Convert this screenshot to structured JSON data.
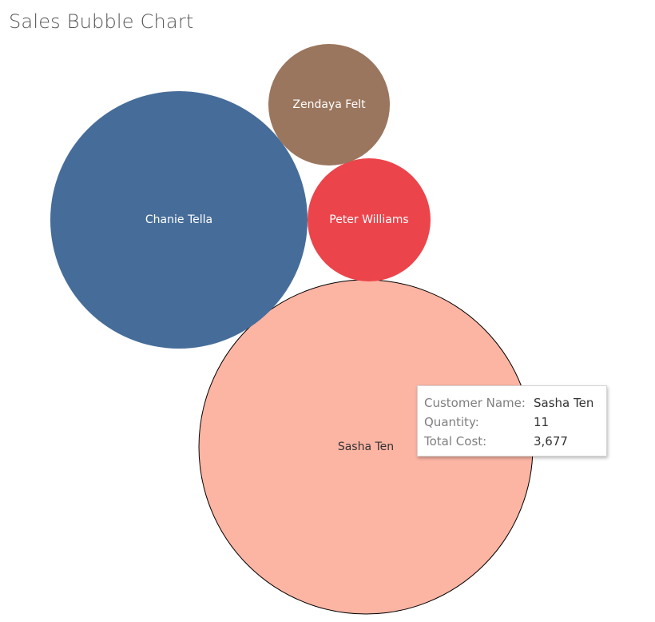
{
  "title": "Sales Bubble Chart",
  "chart_data": {
    "type": "bubble",
    "size_measure": "Total Cost",
    "series": [
      {
        "name": "Sasha Ten",
        "color": "#FCB4A3",
        "label_color": "#333333",
        "highlighted": true
      },
      {
        "name": "Chanie Tella",
        "color": "#466D99",
        "label_color": "#FFFFFF"
      },
      {
        "name": "Peter Williams",
        "color": "#EC444B",
        "label_color": "#FFFFFF"
      },
      {
        "name": "Zendaya Felt",
        "color": "#9A765E",
        "label_color": "#FFFFFF"
      }
    ]
  },
  "tooltip": {
    "rows": [
      {
        "key": "Customer Name:",
        "value": "Sasha Ten"
      },
      {
        "key": "Quantity:",
        "value": "11"
      },
      {
        "key": "Total Cost:",
        "value": "3,677"
      }
    ]
  }
}
